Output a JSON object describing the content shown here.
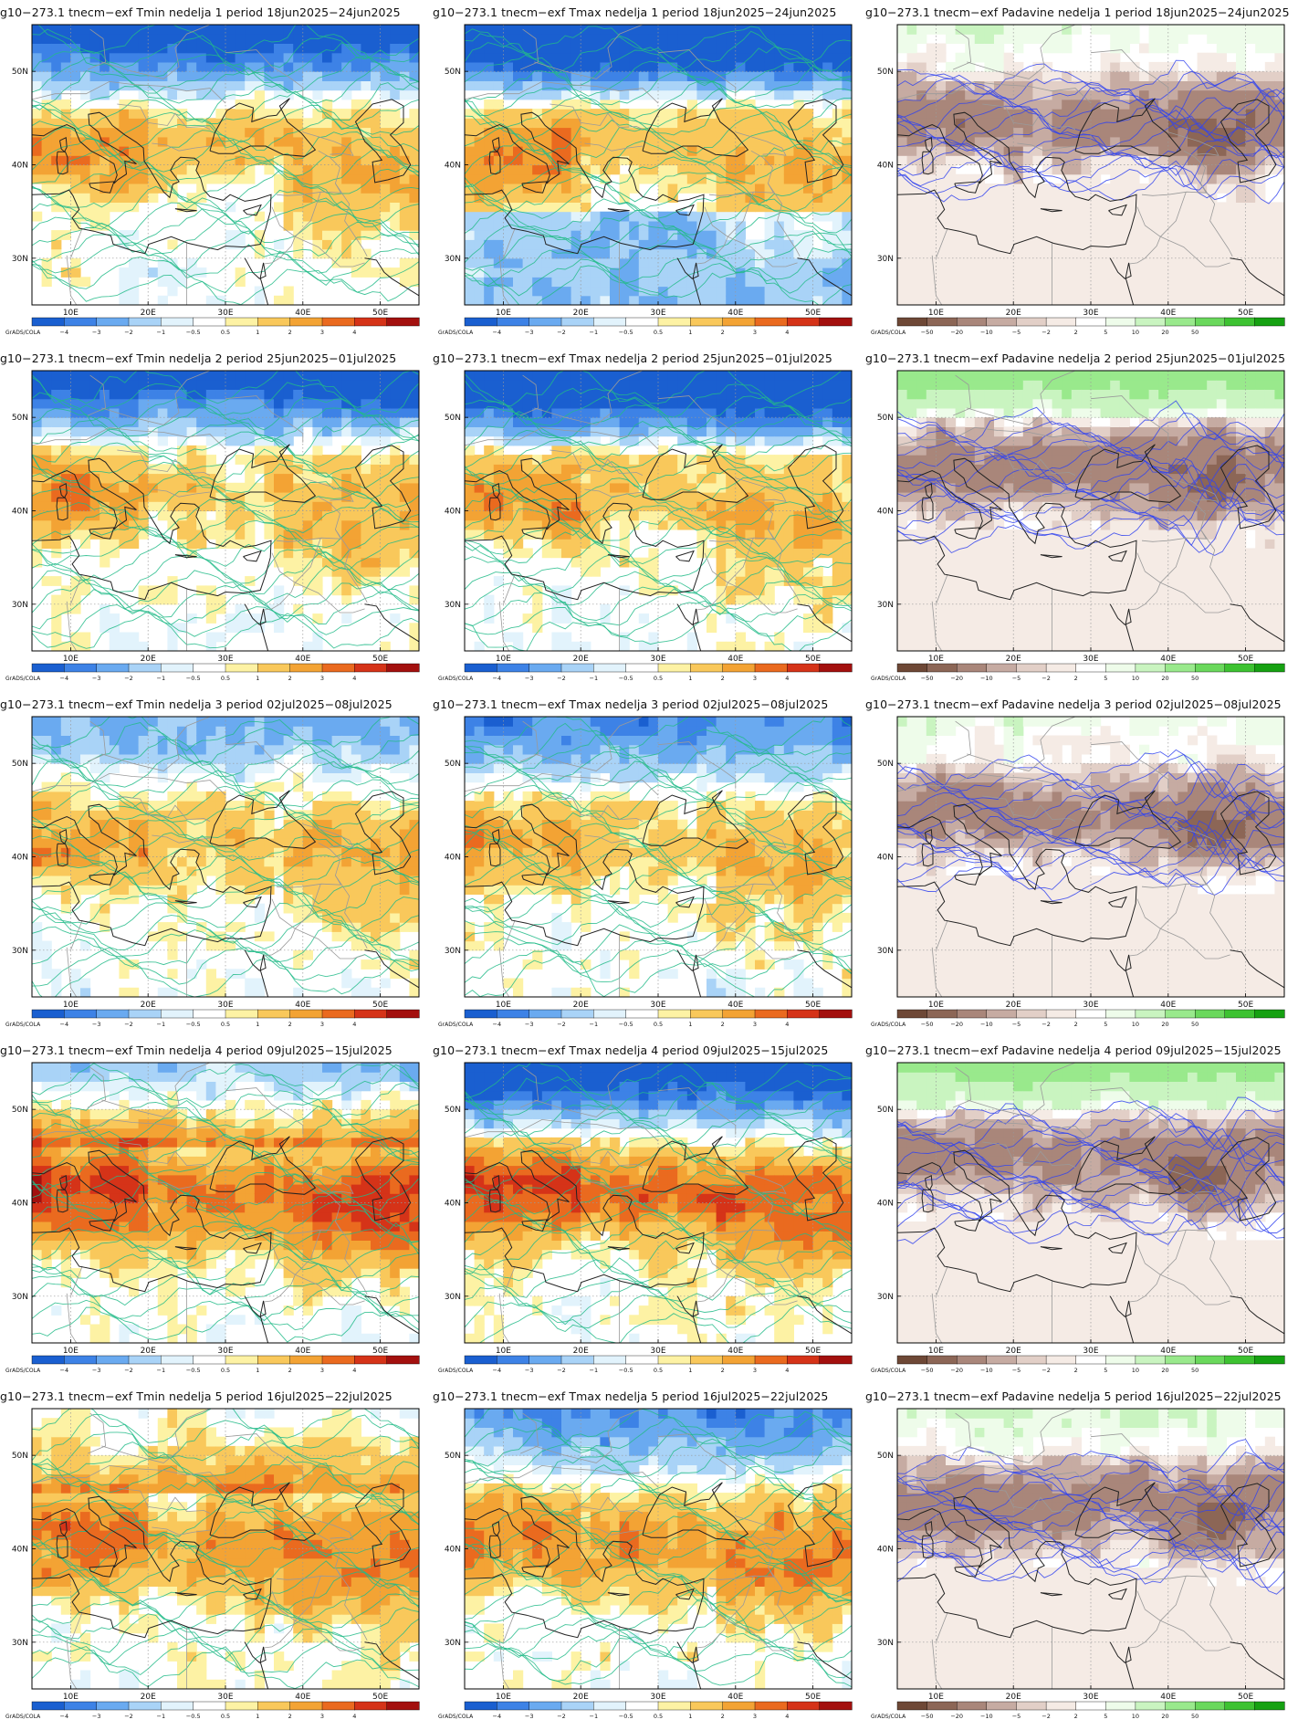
{
  "grid": {
    "rows": [
      {
        "week": "1",
        "period": "18jun2025−24jun2025"
      },
      {
        "week": "2",
        "period": "25jun2025−01jul2025"
      },
      {
        "week": "3",
        "period": "02jul2025−08jul2025"
      },
      {
        "week": "4",
        "period": "09jul2025−15jul2025"
      },
      {
        "week": "5",
        "period": "16jul2025−22jul2025"
      }
    ],
    "columns": [
      {
        "variable": "Tmin",
        "palette": "temp",
        "contour_color": "#22bb88"
      },
      {
        "variable": "Tmax",
        "palette": "temp",
        "contour_color": "#22bb88"
      },
      {
        "variable": "Padavine",
        "palette": "precip",
        "contour_color": "#3344ee"
      }
    ]
  },
  "titles": [
    [
      "g10−273.1 tnecm−exf Tmin nedelja 1 period 18jun2025−24jun2025",
      "g10−273.1 tnecm−exf Tmax nedelja 1 period 18jun2025−24jun2025",
      "g10−273.1 tnecm−exf Padavine nedelja 1 period 18jun2025−24jun2025"
    ],
    [
      "g10−273.1 tnecm−exf Tmin nedelja 2 period 25jun2025−01jul2025",
      "g10−273.1 tnecm−exf Tmax nedelja 2 period 25jun2025−01jul2025",
      "g10−273.1 tnecm−exf Padavine nedelja 2 period 25jun2025−01jul2025"
    ],
    [
      "g10−273.1 tnecm−exf Tmin nedelja 3 period 02jul2025−08jul2025",
      "g10−273.1 tnecm−exf Tmax nedelja 3 period 02jul2025−08jul2025",
      "g10−273.1 tnecm−exf Padavine nedelja 3 period 02jul2025−08jul2025"
    ],
    [
      "g10−273.1 tnecm−exf Tmin nedelja 4 period 09jul2025−15jul2025",
      "g10−273.1 tnecm−exf Tmax nedelja 4 period 09jul2025−15jul2025",
      "g10−273.1 tnecm−exf Padavine nedelja 4 period 09jul2025−15jul2025"
    ],
    [
      "g10−273.1 tnecm−exf Tmin nedelja 5 period 16jul2025−22jul2025",
      "g10−273.1 tnecm−exf Tmax nedelja 5 period 16jul2025−22jul2025",
      "g10−273.1 tnecm−exf Padavine nedelja 5 period 16jul2025−22jul2025"
    ]
  ],
  "map_extent": {
    "lon_min": 5,
    "lon_max": 55,
    "lat_min": 25,
    "lat_max": 55
  },
  "axes": {
    "x_ticks": [
      {
        "lon": 10,
        "label": "10E"
      },
      {
        "lon": 20,
        "label": "20E"
      },
      {
        "lon": 30,
        "label": "30E"
      },
      {
        "lon": 40,
        "label": "40E"
      },
      {
        "lon": 50,
        "label": "50E"
      }
    ],
    "y_ticks": [
      {
        "lat": 30,
        "label": "30N"
      },
      {
        "lat": 40,
        "label": "40N"
      },
      {
        "lat": 50,
        "label": "50N"
      }
    ]
  },
  "colorbars": {
    "credit": "GrADS/COLA",
    "temp": {
      "colors": [
        "#1a5fd0",
        "#3d82e6",
        "#6aaaf0",
        "#a9d3f7",
        "#e2f3fc",
        "#ffffff",
        "#fdf2a4",
        "#f9c85b",
        "#f3a334",
        "#ea6a1f",
        "#d53318",
        "#a3100e"
      ],
      "labels": [
        "−4",
        "−3",
        "−2",
        "−1",
        "−0.5",
        "0.5",
        "1",
        "2",
        "3",
        "4"
      ]
    },
    "precip": {
      "colors": [
        "#6e4836",
        "#8c6656",
        "#a9867a",
        "#c6aba2",
        "#e2cfc7",
        "#f5ebe5",
        "#ffffff",
        "#eefcea",
        "#c9f4c0",
        "#99e98c",
        "#6ad85c",
        "#3dc231",
        "#16a112"
      ],
      "labels": [
        "−50",
        "−20",
        "−10",
        "−5",
        "−2",
        "2",
        "5",
        "10",
        "20",
        "50"
      ]
    }
  }
}
